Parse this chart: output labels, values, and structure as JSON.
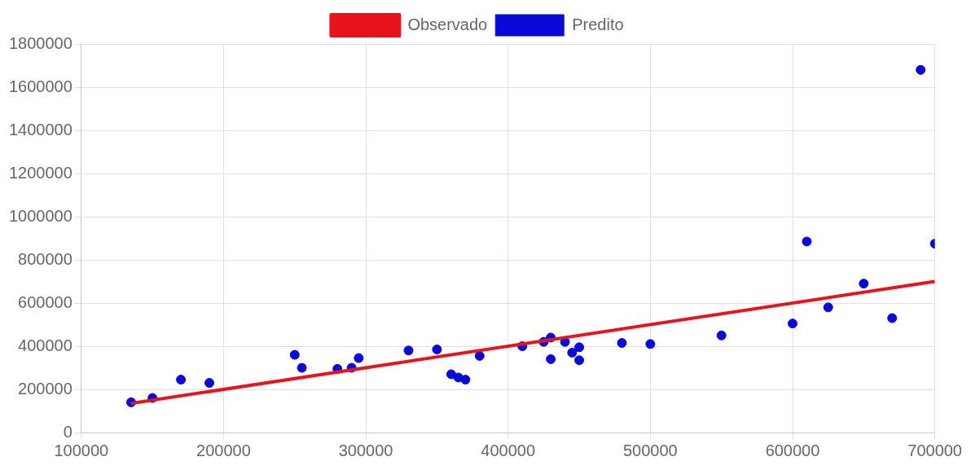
{
  "chart_data": {
    "type": "scatter",
    "legend": "top",
    "grid": true,
    "marker": "circle",
    "xlim": [
      100000,
      700000
    ],
    "xticks": [
      100000,
      200000,
      300000,
      400000,
      500000,
      600000,
      700000
    ],
    "ylim": [
      0,
      1800000
    ],
    "yticks": [
      0,
      200000,
      400000,
      600000,
      800000,
      1000000,
      1200000,
      1400000,
      1600000,
      1800000
    ],
    "series": [
      {
        "name": "Observado",
        "type": "line",
        "color": "#e8141b",
        "marker": "none",
        "line_style": "solid",
        "x": [
          135000,
          700000
        ],
        "values": [
          135000,
          700000
        ]
      },
      {
        "name": "Predito",
        "type": "scatter",
        "color": "#0a0ad8",
        "x": [
          135000,
          150000,
          170000,
          190000,
          250000,
          255000,
          280000,
          290000,
          295000,
          330000,
          350000,
          360000,
          365000,
          370000,
          380000,
          410000,
          425000,
          430000,
          430000,
          440000,
          445000,
          450000,
          450000,
          480000,
          500000,
          550000,
          600000,
          610000,
          625000,
          650000,
          670000,
          690000,
          700000
        ],
        "values": [
          140000,
          160000,
          245000,
          230000,
          360000,
          300000,
          295000,
          300000,
          345000,
          380000,
          385000,
          270000,
          255000,
          245000,
          355000,
          400000,
          420000,
          440000,
          340000,
          420000,
          370000,
          395000,
          335000,
          415000,
          410000,
          450000,
          505000,
          885000,
          580000,
          690000,
          530000,
          1680000,
          875000
        ]
      }
    ]
  }
}
